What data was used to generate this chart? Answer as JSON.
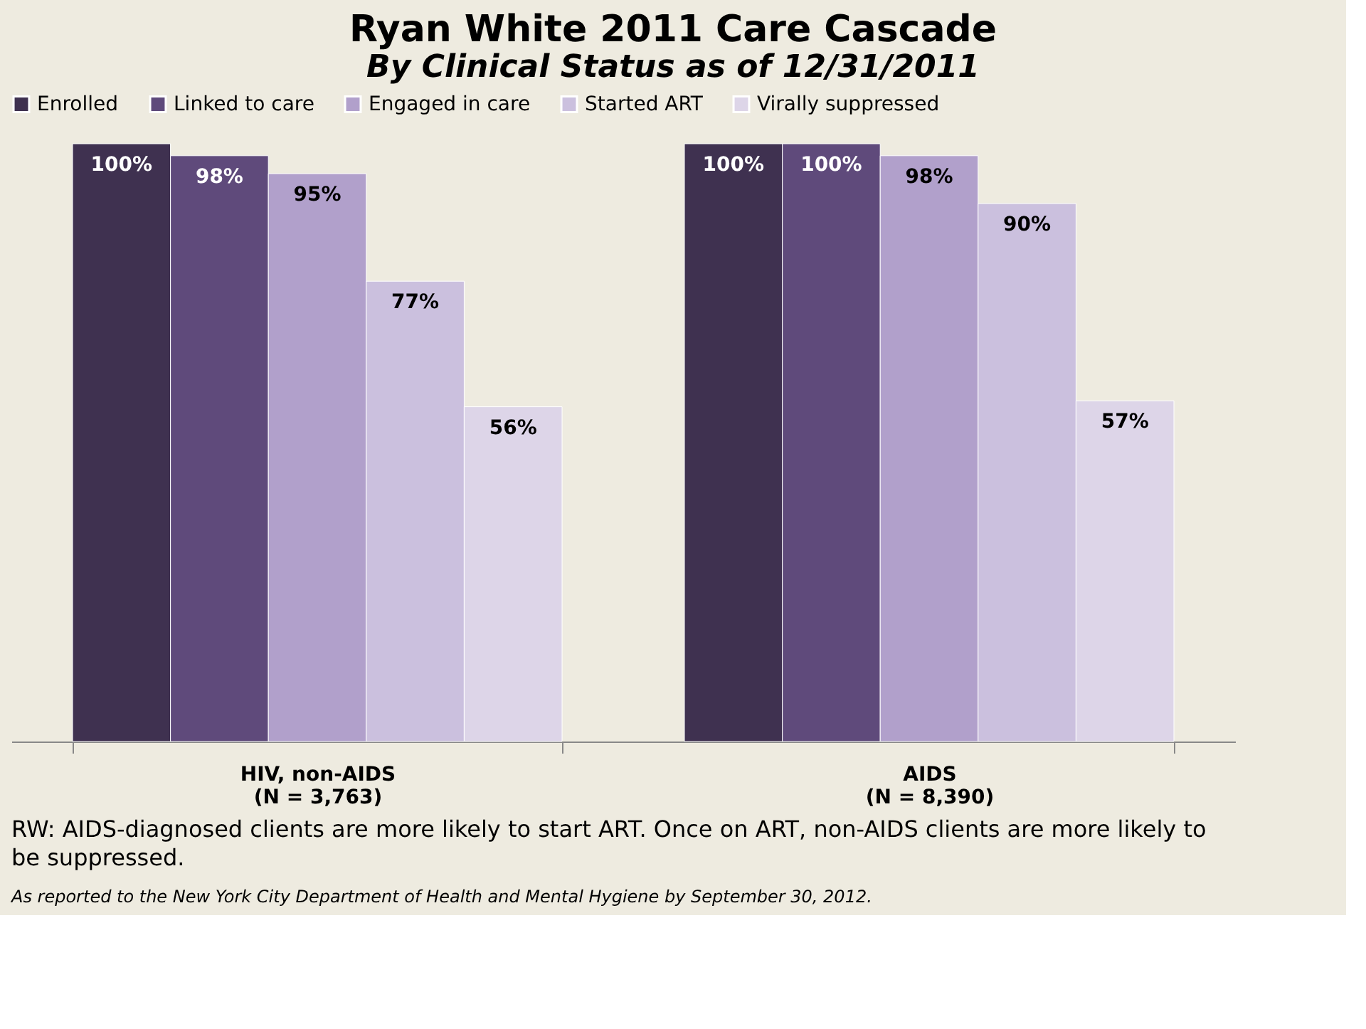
{
  "chart_data": {
    "type": "bar",
    "title": "Ryan White 2011 Care Cascade",
    "subtitle": "By Clinical Status as of 12/31/2011",
    "categories": [
      "HIV, non-AIDS\n(N = 3,763)",
      "AIDS\n(N = 8,390)"
    ],
    "series": [
      {
        "name": "Enrolled",
        "color": "#3f3150",
        "values": [
          100,
          100
        ],
        "value_labels": [
          "100%",
          "100%"
        ]
      },
      {
        "name": "Linked to care",
        "color": "#5f4a7b",
        "values": [
          98,
          100
        ],
        "value_labels": [
          "98%",
          "100%"
        ]
      },
      {
        "name": "Engaged in care",
        "color": "#b1a0cb",
        "values": [
          95,
          98
        ],
        "value_labels": [
          "95%",
          "98%"
        ]
      },
      {
        "name": "Started ART",
        "color": "#cbc0de",
        "values": [
          77,
          90
        ],
        "value_labels": [
          "77%",
          "90%"
        ]
      },
      {
        "name": "Virally suppressed",
        "color": "#ddd5e8",
        "values": [
          56,
          57
        ],
        "value_labels": [
          "56%",
          "57%"
        ]
      }
    ],
    "legend": "top",
    "annotations": [
      "RW: AIDS-diagnosed clients are more likely to start ART. Once on ART, non-AIDS clients are more likely to be suppressed.",
      "As reported to the New York City Department of Health and Mental Hygiene by September 30, 2012."
    ]
  }
}
